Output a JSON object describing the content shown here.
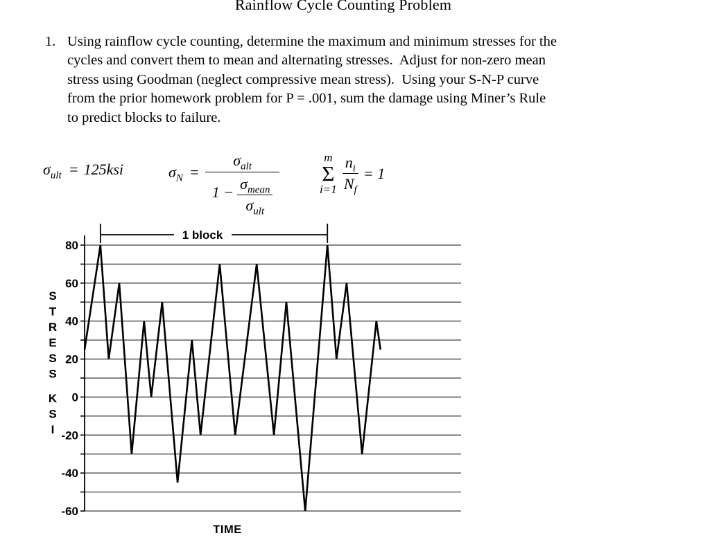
{
  "title": "Rainflow Cycle Counting Problem",
  "problem": {
    "number": "1.",
    "lines": [
      "Using rainflow cycle counting, determine the maximum and minimum stresses for the",
      "cycles and convert them to mean and alternating stresses.  Adjust for non-zero mean",
      "stress using Goodman (neglect compressive mean stress).  Using your S-N-P curve",
      "from the prior homework problem for P = .001, sum the damage using Miner’s Rule",
      "to predict blocks to failure."
    ]
  },
  "formulas": {
    "ultimate_strength": {
      "sigma": "σ",
      "sub": "ult",
      "eq": "=",
      "value": "125ksi"
    },
    "goodman": {
      "lhs_sigma": "σ",
      "lhs_sub": "N",
      "eq": "=",
      "num_sigma": "σ",
      "num_sub": "alt",
      "den_prefix": "1 −",
      "den_num_sigma": "σ",
      "den_num_sub": "mean",
      "den_den_sigma": "σ",
      "den_den_sub": "ult"
    },
    "miners_rule": {
      "sum_upper": "m",
      "sum_symbol": "Σ",
      "sum_lower": "i=1",
      "num": "n",
      "num_sub": "i",
      "den": "N",
      "den_sub": "f",
      "rhs": "= 1"
    }
  },
  "chart_data": {
    "type": "line",
    "title": "",
    "xlabel": "TIME",
    "ylabel": "STRESS KSI",
    "ylabel_unit": "ksi",
    "ylim": [
      -60,
      80
    ],
    "y_ticks": [
      80,
      60,
      40,
      20,
      0,
      -20,
      -40,
      -60
    ],
    "grid_interval": 10,
    "grid": true,
    "x_units": "arbitrary time",
    "x": [
      0,
      4.2,
      6.4,
      9.2,
      12.5,
      15.8,
      17.7,
      20.6,
      24.7,
      28.5,
      30.8,
      35.9,
      40.0,
      45.7,
      50.3,
      53.6,
      58.6,
      64.5,
      66.9,
      69.6,
      73.7,
      77.5,
      78.6
    ],
    "values": [
      25,
      80,
      20,
      60,
      -30,
      40,
      0,
      50,
      -45,
      30,
      -20,
      70,
      -20,
      70,
      -20,
      50,
      -60,
      80,
      20,
      60,
      -30,
      40,
      25
    ],
    "turning_points_ksi": [
      25,
      80,
      20,
      60,
      -30,
      40,
      0,
      50,
      -45,
      30,
      -20,
      70,
      -20,
      70,
      -20,
      50,
      -60,
      80,
      20,
      60,
      -30,
      40,
      25
    ],
    "block_marker": {
      "label": "1 block",
      "t_start": 4.2,
      "t_end": 64.5
    }
  }
}
